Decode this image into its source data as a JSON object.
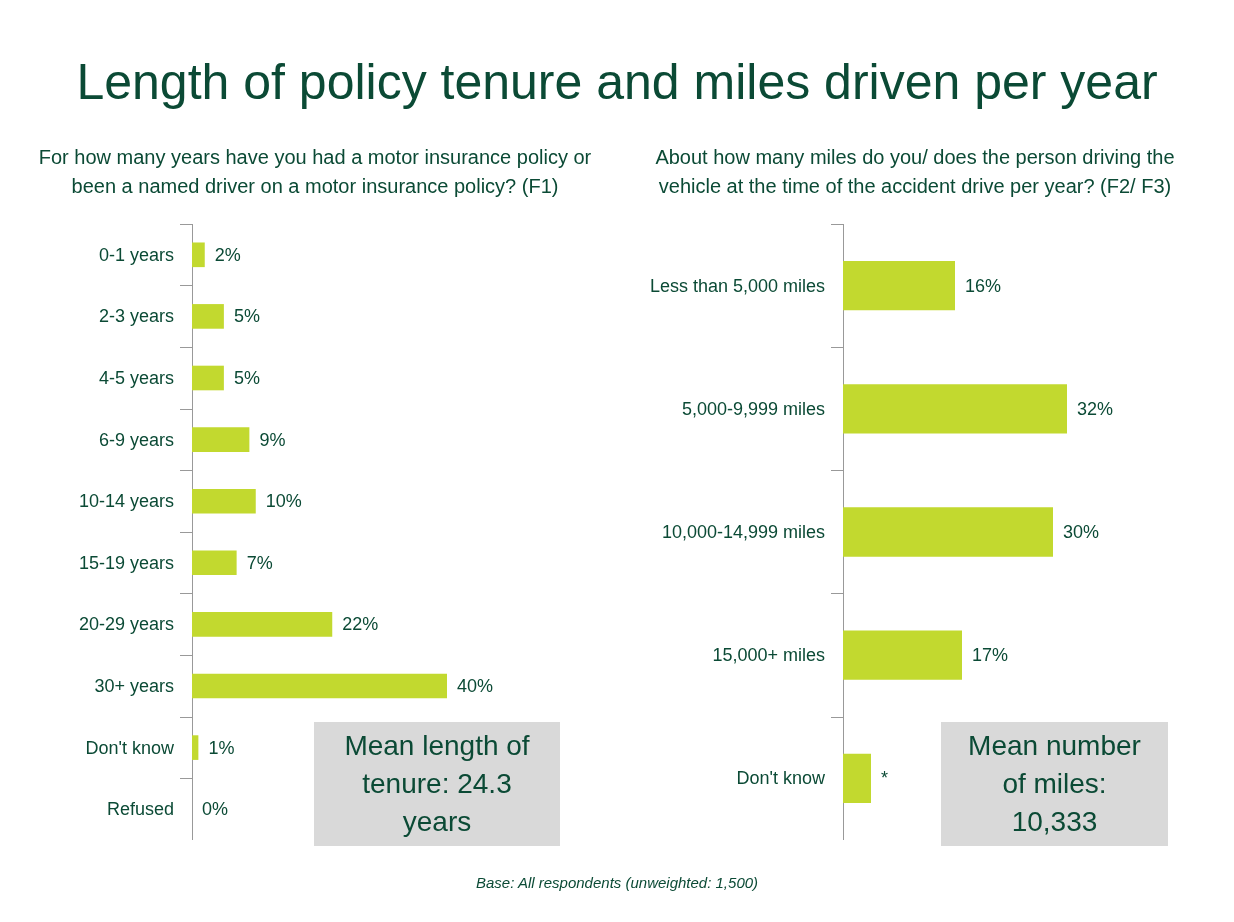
{
  "chart_data": [
    {
      "type": "bar",
      "orientation": "horizontal",
      "title": "Length of policy tenure and miles driven per year",
      "subtitle": "For how many years have you had a motor insurance policy or been a named driver on a motor insurance policy? (F1)",
      "categories": [
        "0-1 years",
        "2-3 years",
        "4-5 years",
        "6-9 years",
        "10-14 years",
        "15-19 years",
        "20-29 years",
        "30+ years",
        "Don't know",
        "Refused"
      ],
      "values": [
        2,
        5,
        5,
        9,
        10,
        7,
        22,
        40,
        1,
        0
      ],
      "value_labels": [
        "2%",
        "5%",
        "5%",
        "9%",
        "10%",
        "7%",
        "22%",
        "40%",
        "1%",
        "0%"
      ],
      "color": "#c2d92f",
      "annotations": [
        "Mean length of tenure: 24.3 years",
        "Base: All respondents (unweighted: 1,500)"
      ]
    },
    {
      "type": "bar",
      "orientation": "horizontal",
      "subtitle": "About how many miles do you/ does the person driving the vehicle at the time of the accident drive per year? (F2/ F3)",
      "categories": [
        "Less than 5,000 miles",
        "5,000-9,999 miles",
        "10,000-14,999 miles",
        "15,000+ miles",
        "Don't know"
      ],
      "values": [
        16,
        32,
        30,
        17,
        4
      ],
      "value_labels": [
        "16%",
        "32%",
        "30%",
        "17%",
        "*"
      ],
      "color": "#c2d92f",
      "annotations": [
        "Mean number of miles: 10,333"
      ]
    }
  ]
}
